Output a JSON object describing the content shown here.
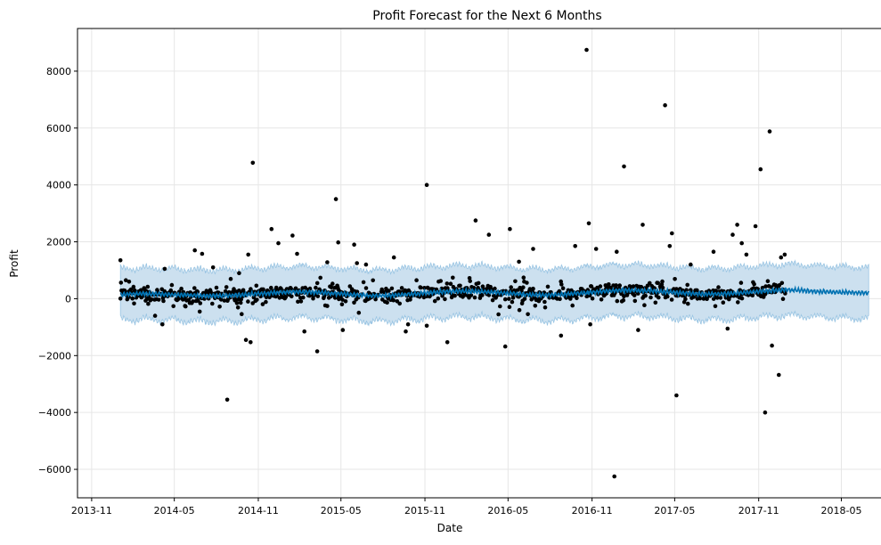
{
  "chart_data": {
    "type": "scatter",
    "title": "Profit Forecast for the Next 6 Months",
    "xlabel": "Date",
    "ylabel": "Profit",
    "xlim": [
      "2013-10-01",
      "2018-08-31"
    ],
    "ylim": [
      -7000,
      9500
    ],
    "x_ticks": [
      "2013-11",
      "2014-05",
      "2014-11",
      "2015-05",
      "2015-11",
      "2016-05",
      "2016-11",
      "2017-05",
      "2017-11",
      "2018-05"
    ],
    "y_ticks": [
      -6000,
      -4000,
      -2000,
      0,
      2000,
      4000,
      6000,
      8000
    ],
    "grid": true,
    "colors": {
      "points": "#000000",
      "forecast_line": "#0072B2",
      "interval_fill": "#cce0ef",
      "interval_edge": "#9ac5e3"
    },
    "history_start": "2014-01-03",
    "history_end": "2017-12-30",
    "forecast_end": "2018-06-30",
    "observed_outliers": [
      {
        "x": "2014-01-03",
        "y": 1350
      },
      {
        "x": "2014-01-15",
        "y": 650
      },
      {
        "x": "2014-01-22",
        "y": 600
      },
      {
        "x": "2014-03-20",
        "y": -600
      },
      {
        "x": "2014-04-05",
        "y": -900
      },
      {
        "x": "2014-04-10",
        "y": 1050
      },
      {
        "x": "2014-06-15",
        "y": 1700
      },
      {
        "x": "2014-07-01",
        "y": 1580
      },
      {
        "x": "2014-07-25",
        "y": 1100
      },
      {
        "x": "2014-08-25",
        "y": -3550
      },
      {
        "x": "2014-09-20",
        "y": 900
      },
      {
        "x": "2014-10-05",
        "y": -1450
      },
      {
        "x": "2014-10-10",
        "y": 1550
      },
      {
        "x": "2014-10-15",
        "y": -1530
      },
      {
        "x": "2014-10-20",
        "y": 4780
      },
      {
        "x": "2014-11-30",
        "y": 2450
      },
      {
        "x": "2014-12-15",
        "y": 1950
      },
      {
        "x": "2015-01-15",
        "y": 2220
      },
      {
        "x": "2015-01-25",
        "y": 1580
      },
      {
        "x": "2015-02-10",
        "y": -1150
      },
      {
        "x": "2015-03-10",
        "y": -1850
      },
      {
        "x": "2015-04-01",
        "y": 1280
      },
      {
        "x": "2015-04-20",
        "y": 3500
      },
      {
        "x": "2015-04-25",
        "y": 1980
      },
      {
        "x": "2015-05-05",
        "y": -1100
      },
      {
        "x": "2015-05-30",
        "y": 1900
      },
      {
        "x": "2015-06-05",
        "y": 1250
      },
      {
        "x": "2015-06-25",
        "y": 1200
      },
      {
        "x": "2015-08-25",
        "y": 1450
      },
      {
        "x": "2015-09-20",
        "y": -1150
      },
      {
        "x": "2015-09-25",
        "y": -900
      },
      {
        "x": "2015-11-05",
        "y": 4000
      },
      {
        "x": "2015-11-05",
        "y": -950
      },
      {
        "x": "2015-12-20",
        "y": -1530
      },
      {
        "x": "2016-02-20",
        "y": 2750
      },
      {
        "x": "2016-03-20",
        "y": 2250
      },
      {
        "x": "2016-04-10",
        "y": -550
      },
      {
        "x": "2016-04-25",
        "y": -1680
      },
      {
        "x": "2016-05-05",
        "y": 2450
      },
      {
        "x": "2016-05-25",
        "y": 1300
      },
      {
        "x": "2016-06-25",
        "y": 1750
      },
      {
        "x": "2016-08-25",
        "y": -1300
      },
      {
        "x": "2016-09-25",
        "y": 1850
      },
      {
        "x": "2016-10-20",
        "y": 8750
      },
      {
        "x": "2016-10-25",
        "y": 2650
      },
      {
        "x": "2016-10-28",
        "y": -900
      },
      {
        "x": "2016-11-10",
        "y": 1750
      },
      {
        "x": "2016-12-20",
        "y": -6250
      },
      {
        "x": "2016-12-25",
        "y": 1650
      },
      {
        "x": "2017-01-10",
        "y": 4650
      },
      {
        "x": "2017-02-10",
        "y": -1100
      },
      {
        "x": "2017-02-20",
        "y": 2600
      },
      {
        "x": "2017-04-10",
        "y": 6800
      },
      {
        "x": "2017-04-20",
        "y": 1850
      },
      {
        "x": "2017-04-25",
        "y": 2300
      },
      {
        "x": "2017-05-05",
        "y": -3400
      },
      {
        "x": "2017-06-05",
        "y": 1200
      },
      {
        "x": "2017-07-25",
        "y": 1650
      },
      {
        "x": "2017-08-25",
        "y": -1050
      },
      {
        "x": "2017-09-05",
        "y": 2250
      },
      {
        "x": "2017-09-15",
        "y": 2600
      },
      {
        "x": "2017-09-25",
        "y": 1950
      },
      {
        "x": "2017-10-05",
        "y": 1550
      },
      {
        "x": "2017-10-25",
        "y": 2550
      },
      {
        "x": "2017-11-05",
        "y": 4550
      },
      {
        "x": "2017-11-15",
        "y": -4000
      },
      {
        "x": "2017-11-25",
        "y": 5880
      },
      {
        "x": "2017-11-30",
        "y": -1650
      },
      {
        "x": "2017-12-15",
        "y": -2680
      },
      {
        "x": "2017-12-20",
        "y": 1450
      },
      {
        "x": "2017-12-28",
        "y": 1550
      }
    ],
    "trend_knots": [
      {
        "x": "2014-01-03",
        "yhat": 80
      },
      {
        "x": "2014-06-01",
        "yhat": 170
      },
      {
        "x": "2014-12-01",
        "yhat": 160
      },
      {
        "x": "2015-06-01",
        "yhat": 180
      },
      {
        "x": "2015-12-01",
        "yhat": 190
      },
      {
        "x": "2016-06-01",
        "yhat": 200
      },
      {
        "x": "2016-12-01",
        "yhat": 220
      },
      {
        "x": "2017-06-01",
        "yhat": 230
      },
      {
        "x": "2017-12-30",
        "yhat": 250
      },
      {
        "x": "2018-03-01",
        "yhat": 200
      },
      {
        "x": "2018-06-30",
        "yhat": 270
      }
    ],
    "interval": {
      "lower_offset": -900,
      "upper_offset": 900
    }
  }
}
